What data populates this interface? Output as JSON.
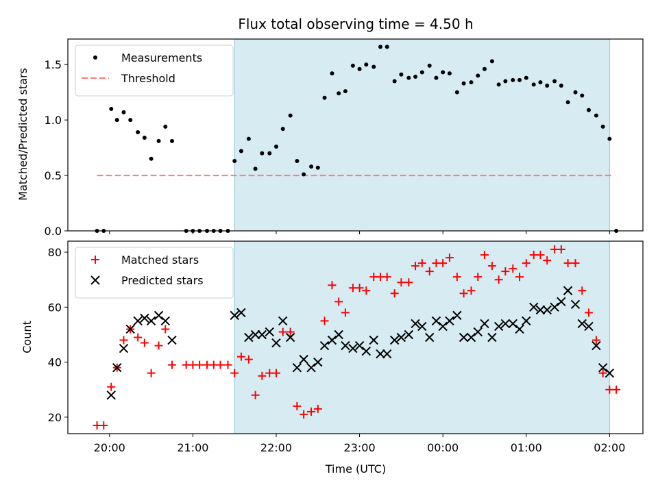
{
  "chart_data": [
    {
      "type": "scatter",
      "title": "Flux total observing time = 4.50 h",
      "xlabel": "",
      "ylabel": "Matched/Predicted stars",
      "xlim": [
        -0.5,
        6.4
      ],
      "ylim": [
        0,
        1.73
      ],
      "yticks": [
        "0.0",
        "0.5",
        "1.0",
        "1.5"
      ],
      "ytick_values": [
        0,
        0.5,
        1.0,
        1.5
      ],
      "shaded_span": [
        1.5,
        6.0
      ],
      "legend_position": "upper left",
      "threshold": {
        "name": "Threshold",
        "value": 0.5,
        "x_range": [
          -0.15,
          6.05
        ],
        "color": "#ff7a7a"
      },
      "series": [
        {
          "name": "Measurements",
          "color": "#000000",
          "marker": "dot",
          "x": [
            -0.15,
            -0.07,
            0.02,
            0.09,
            0.17,
            0.25,
            0.34,
            0.42,
            0.5,
            0.59,
            0.67,
            0.75,
            0.92,
            1.0,
            1.08,
            1.17,
            1.25,
            1.33,
            1.42,
            1.5,
            1.58,
            1.67,
            1.75,
            1.83,
            1.92,
            2.0,
            2.08,
            2.17,
            2.25,
            2.33,
            2.42,
            2.5,
            2.58,
            2.67,
            2.75,
            2.83,
            2.92,
            3.0,
            3.08,
            3.17,
            3.25,
            3.33,
            3.42,
            3.5,
            3.59,
            3.67,
            3.75,
            3.84,
            3.92,
            4.0,
            4.08,
            4.17,
            4.25,
            4.34,
            4.42,
            4.5,
            4.59,
            4.67,
            4.75,
            4.84,
            4.92,
            5.0,
            5.09,
            5.17,
            5.25,
            5.34,
            5.42,
            5.5,
            5.59,
            5.67,
            5.75,
            5.84,
            5.92,
            6.0,
            6.08
          ],
          "y": [
            0,
            0,
            1.1,
            1.0,
            1.07,
            1.0,
            0.89,
            0.84,
            0.65,
            0.81,
            0.94,
            0.81,
            0,
            0,
            0,
            0,
            0,
            0,
            0,
            0.63,
            0.72,
            0.83,
            0.56,
            0.7,
            0.7,
            0.76,
            0.92,
            1.04,
            0.63,
            0.51,
            0.58,
            0.57,
            1.2,
            1.42,
            1.24,
            1.26,
            1.49,
            1.46,
            1.5,
            1.48,
            1.66,
            1.66,
            1.35,
            1.41,
            1.38,
            1.39,
            1.43,
            1.49,
            1.38,
            1.43,
            1.42,
            1.25,
            1.33,
            1.34,
            1.4,
            1.46,
            1.53,
            1.32,
            1.35,
            1.36,
            1.36,
            1.38,
            1.32,
            1.34,
            1.31,
            1.35,
            1.31,
            1.16,
            1.25,
            1.22,
            1.09,
            1.04,
            0.94,
            0.83,
            0
          ]
        }
      ]
    },
    {
      "type": "scatter",
      "title": "",
      "xlabel": "Time (UTC)",
      "ylabel": "Count",
      "xlim": [
        -0.5,
        6.4
      ],
      "ylim": [
        14,
        84
      ],
      "yticks": [
        "20",
        "40",
        "60",
        "80"
      ],
      "ytick_values": [
        20,
        40,
        60,
        80
      ],
      "xticks": [
        "20:00",
        "21:00",
        "22:00",
        "23:00",
        "00:00",
        "01:00",
        "02:00"
      ],
      "xtick_values": [
        0,
        1,
        2,
        3,
        4,
        5,
        6
      ],
      "shaded_span": [
        1.5,
        6.0
      ],
      "legend_position": "upper left",
      "series": [
        {
          "name": "Matched stars",
          "color": "#ff0000",
          "marker": "plus",
          "x": [
            -0.15,
            -0.07,
            0.02,
            0.09,
            0.17,
            0.25,
            0.34,
            0.42,
            0.5,
            0.59,
            0.67,
            0.75,
            0.92,
            1.0,
            1.08,
            1.17,
            1.25,
            1.33,
            1.42,
            1.5,
            1.58,
            1.67,
            1.75,
            1.83,
            1.92,
            2.0,
            2.08,
            2.17,
            2.25,
            2.33,
            2.42,
            2.5,
            2.58,
            2.67,
            2.75,
            2.83,
            2.92,
            3.0,
            3.08,
            3.17,
            3.25,
            3.33,
            3.42,
            3.5,
            3.59,
            3.67,
            3.75,
            3.84,
            3.92,
            4.0,
            4.08,
            4.17,
            4.25,
            4.34,
            4.42,
            4.5,
            4.59,
            4.67,
            4.75,
            4.84,
            4.92,
            5.0,
            5.09,
            5.17,
            5.25,
            5.34,
            5.42,
            5.5,
            5.59,
            5.67,
            5.75,
            5.84,
            5.92,
            6.0,
            6.08
          ],
          "y": [
            17,
            17,
            31,
            38,
            48,
            52,
            49,
            47,
            36,
            46,
            52,
            39,
            39,
            39,
            39,
            39,
            39,
            39,
            39,
            36,
            42,
            41,
            28,
            35,
            36,
            36,
            51,
            51,
            24,
            21,
            22,
            23,
            55,
            68,
            62,
            58,
            67,
            67,
            66,
            71,
            71,
            71,
            65,
            69,
            69,
            75,
            76,
            73,
            76,
            76,
            78,
            71,
            65,
            66,
            71,
            79,
            75,
            70,
            73,
            74,
            71,
            76,
            79,
            79,
            77,
            81,
            81,
            76,
            76,
            66,
            58,
            48,
            36,
            30,
            30
          ]
        },
        {
          "name": "Predicted stars",
          "color": "#000000",
          "marker": "x",
          "x": [
            -0.15,
            -0.07,
            0.02,
            0.09,
            0.17,
            0.25,
            0.34,
            0.42,
            0.5,
            0.59,
            0.67,
            0.75,
            0.92,
            1.0,
            1.08,
            1.17,
            1.25,
            1.33,
            1.42,
            1.5,
            1.58,
            1.67,
            1.75,
            1.83,
            1.92,
            2.0,
            2.08,
            2.17,
            2.25,
            2.33,
            2.42,
            2.5,
            2.58,
            2.67,
            2.75,
            2.83,
            2.92,
            3.0,
            3.08,
            3.17,
            3.25,
            3.33,
            3.42,
            3.5,
            3.59,
            3.67,
            3.75,
            3.84,
            3.92,
            4.0,
            4.08,
            4.17,
            4.25,
            4.34,
            4.42,
            4.5,
            4.59,
            4.67,
            4.75,
            4.84,
            4.92,
            5.0,
            5.09,
            5.17,
            5.25,
            5.34,
            5.42,
            5.5,
            5.59,
            5.67,
            5.75,
            5.84,
            5.92,
            6.0,
            6.08
          ],
          "y": [
            null,
            null,
            28,
            38,
            45,
            52,
            55,
            56,
            55,
            57,
            55,
            48,
            null,
            null,
            null,
            null,
            null,
            null,
            null,
            57,
            58,
            49,
            50,
            50,
            51,
            47,
            55,
            49,
            38,
            41,
            38,
            40,
            46,
            48,
            50,
            46,
            45,
            46,
            44,
            48,
            43,
            43,
            48,
            49,
            50,
            54,
            53,
            49,
            55,
            53,
            55,
            57,
            49,
            49,
            51,
            54,
            49,
            53,
            54,
            54,
            52,
            55,
            60,
            59,
            59,
            60,
            62,
            66,
            61,
            54,
            53,
            46,
            38,
            36,
            null
          ]
        }
      ]
    }
  ]
}
